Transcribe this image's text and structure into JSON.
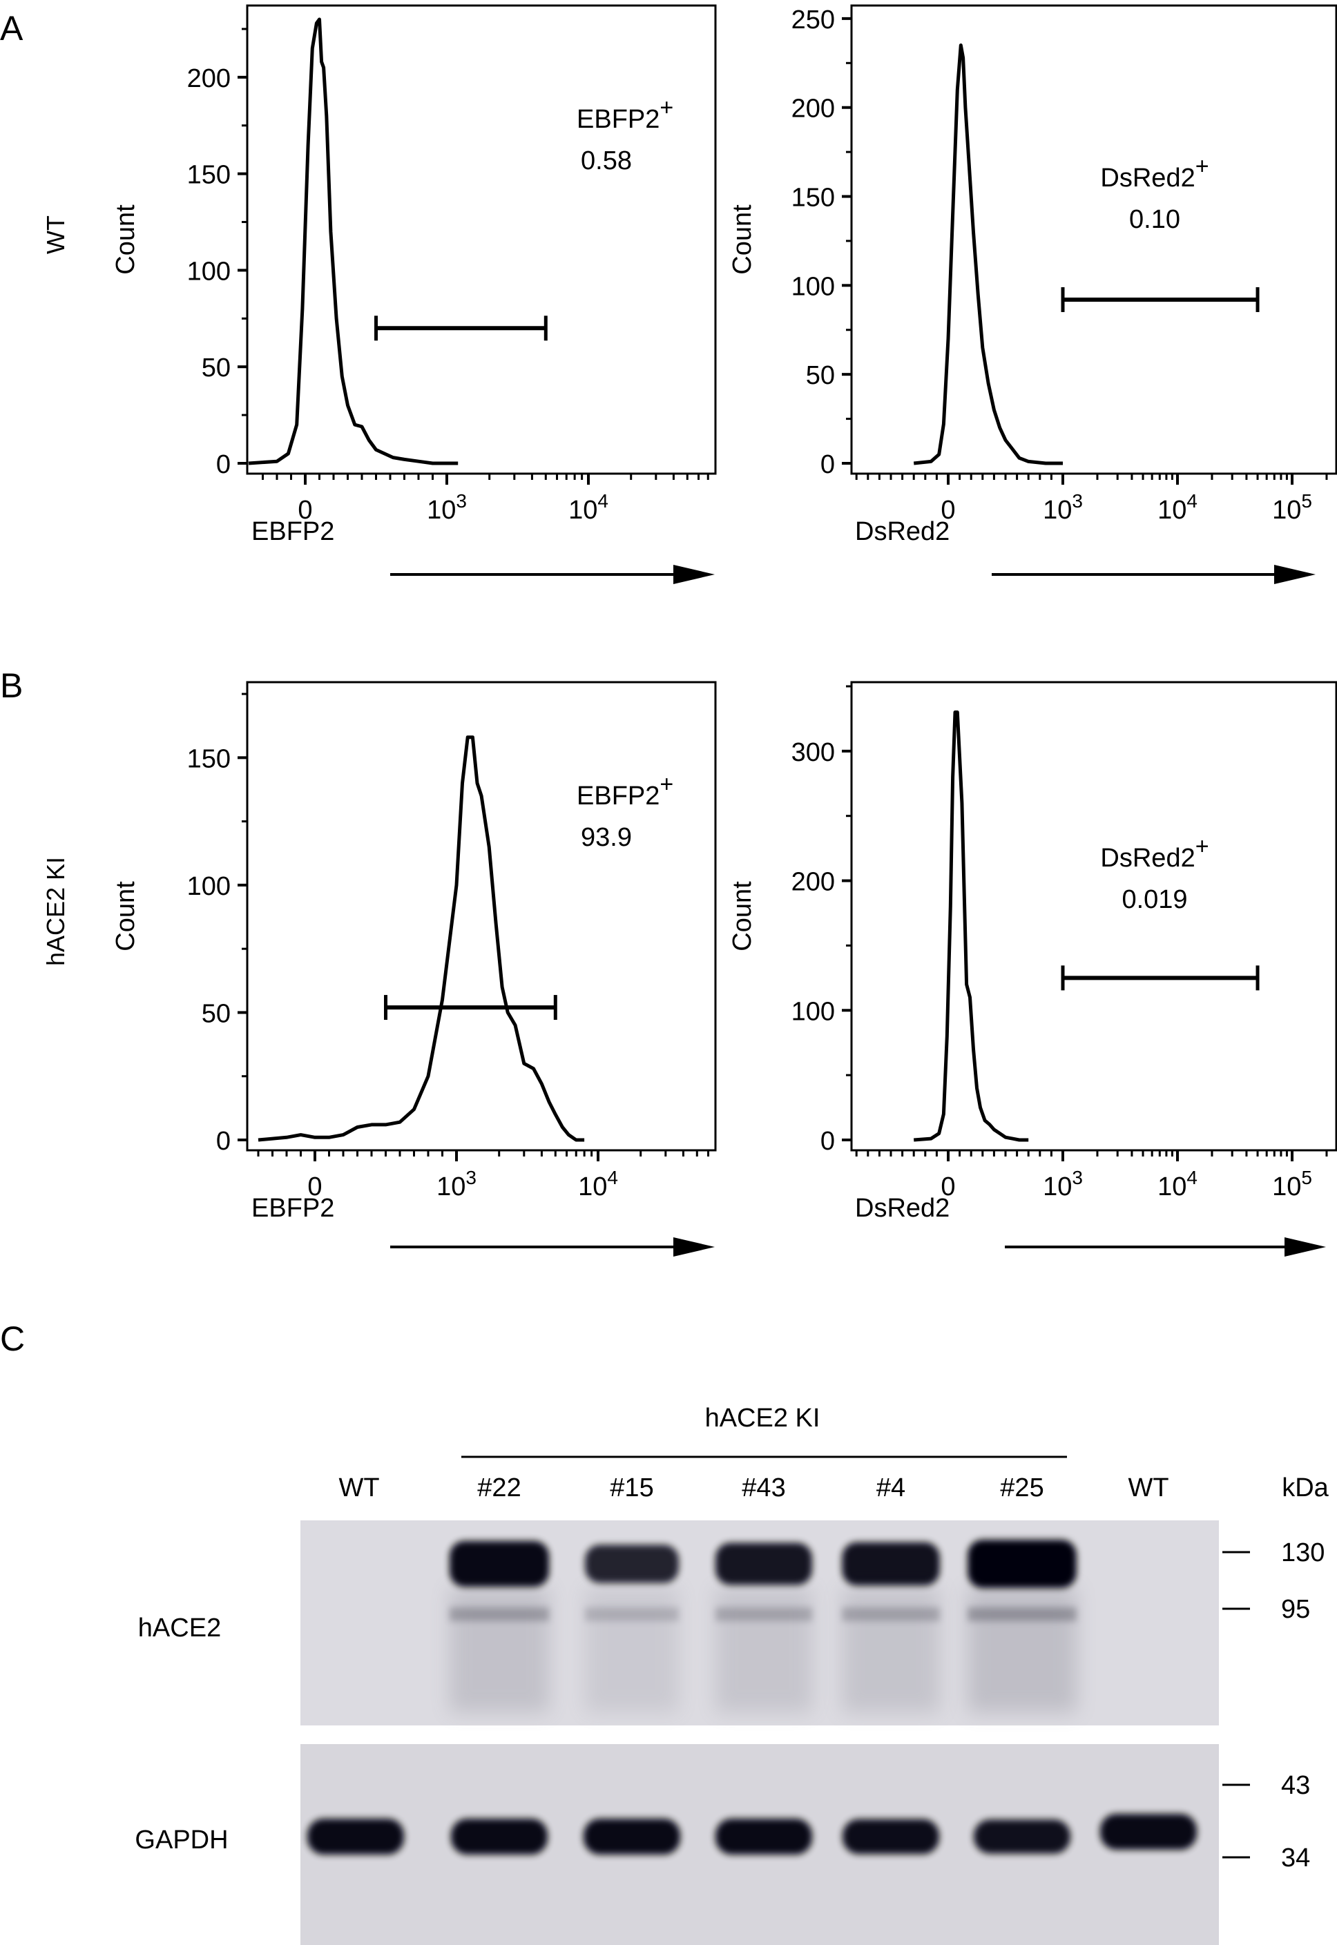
{
  "panels": {
    "A": {
      "letter": "A",
      "row_label": "WT"
    },
    "B": {
      "letter": "B",
      "row_label": "hACE2 KI"
    },
    "C": {
      "letter": "C"
    }
  },
  "chart_data": [
    {
      "id": "A_EBFP2",
      "type": "line",
      "xlabel": "EBFP2",
      "ylabel": "Count",
      "xaxis": {
        "scale": "biexponential",
        "tick_labels": [
          "0",
          "10^3",
          "10^4"
        ]
      },
      "ylim": [
        0,
        235
      ],
      "yticks": [
        0,
        50,
        100,
        150,
        200
      ],
      "gate": {
        "marker": "EBFP2",
        "sign": "+",
        "value": "0.58",
        "range": [
          500,
          5000
        ],
        "y": 70,
        "label_align": "left"
      },
      "series": [
        {
          "x": [
            -400,
            -200,
            -120,
            -60,
            -20,
            20,
            50,
            80,
            100,
            115,
            130,
            150,
            180,
            220,
            260,
            300,
            350,
            400,
            450,
            500,
            560,
            620,
            700,
            800,
            900,
            1000,
            1200
          ],
          "values": [
            0,
            1,
            5,
            20,
            80,
            165,
            215,
            228,
            230,
            208,
            205,
            180,
            120,
            75,
            45,
            30,
            20,
            19,
            12,
            7,
            5,
            3,
            2,
            1,
            0,
            0,
            0
          ]
        }
      ]
    },
    {
      "id": "A_DsRed2",
      "type": "line",
      "xlabel": "DsRed2",
      "ylabel": "Count",
      "xaxis": {
        "scale": "biexponential",
        "tick_labels": [
          "0",
          "10^3",
          "10^4",
          "10^5"
        ]
      },
      "ylim": [
        0,
        255
      ],
      "yticks": [
        0,
        50,
        100,
        150,
        200,
        250
      ],
      "gate": {
        "marker": "DsRed2",
        "sign": "+",
        "value": "0.10",
        "range": [
          1000,
          50000
        ],
        "y": 92,
        "label_align": "center"
      },
      "series": [
        {
          "x": [
            -300,
            -150,
            -80,
            -40,
            0,
            40,
            80,
            110,
            130,
            150,
            180,
            220,
            260,
            300,
            350,
            400,
            450,
            500,
            560,
            620,
            700,
            850,
            1000
          ],
          "values": [
            0,
            1,
            5,
            22,
            70,
            140,
            210,
            235,
            228,
            200,
            170,
            130,
            95,
            65,
            45,
            30,
            20,
            13,
            8,
            3,
            1,
            0,
            0
          ]
        }
      ]
    },
    {
      "id": "B_EBFP2",
      "type": "line",
      "xlabel": "EBFP2",
      "ylabel": "Count",
      "xaxis": {
        "scale": "biexponential",
        "tick_labels": [
          "0",
          "10^3",
          "10^4"
        ]
      },
      "ylim": [
        0,
        178
      ],
      "yticks": [
        0,
        50,
        100,
        150
      ],
      "gate": {
        "marker": "EBFP2",
        "sign": "+",
        "value": "93.9",
        "range": [
          500,
          5000
        ],
        "y": 52,
        "label_align": "left"
      },
      "series": [
        {
          "x": [
            -400,
            -200,
            -100,
            0,
            100,
            200,
            300,
            400,
            500,
            600,
            700,
            800,
            900,
            1000,
            1100,
            1200,
            1300,
            1400,
            1500,
            1700,
            1900,
            2100,
            2300,
            2600,
            3000,
            3500,
            4000,
            4500,
            5000,
            5600,
            6200,
            7000,
            8000
          ],
          "values": [
            0,
            1,
            2,
            1,
            1,
            2,
            5,
            6,
            6,
            7,
            12,
            25,
            55,
            100,
            140,
            158,
            158,
            140,
            135,
            115,
            85,
            60,
            50,
            45,
            30,
            28,
            22,
            15,
            10,
            5,
            2,
            0,
            0
          ]
        }
      ]
    },
    {
      "id": "B_DsRed2",
      "type": "line",
      "xlabel": "DsRed2",
      "ylabel": "Count",
      "xaxis": {
        "scale": "biexponential",
        "tick_labels": [
          "0",
          "10^3",
          "10^4",
          "10^5"
        ]
      },
      "ylim": [
        0,
        350
      ],
      "yticks": [
        0,
        100,
        200,
        300
      ],
      "gate": {
        "marker": "DsRed2",
        "sign": "+",
        "value": "0.019",
        "range": [
          1000,
          50000
        ],
        "y": 125,
        "label_align": "center"
      },
      "series": [
        {
          "x": [
            -300,
            -150,
            -80,
            -40,
            -10,
            20,
            40,
            60,
            80,
            100,
            120,
            140,
            160,
            190,
            220,
            250,
            280,
            320,
            360,
            400,
            450,
            500,
            560,
            620,
            700
          ],
          "values": [
            0,
            1,
            5,
            20,
            80,
            180,
            280,
            330,
            330,
            295,
            260,
            190,
            120,
            110,
            70,
            40,
            25,
            15,
            12,
            8,
            5,
            2,
            1,
            0,
            0
          ]
        }
      ]
    }
  ],
  "blot": {
    "group_label": "hACE2 KI",
    "lanes": [
      "WT",
      "#22",
      "#15",
      "#43",
      "#4",
      "#25",
      "WT"
    ],
    "kda_label": "kDa",
    "rows": [
      {
        "label": "hACE2",
        "markers": [
          "130",
          "95"
        ],
        "band_intensity": [
          0,
          0.9,
          0.6,
          0.75,
          0.8,
          1.0,
          0
        ]
      },
      {
        "label": "GAPDH",
        "markers": [
          "43",
          "34"
        ],
        "band_intensity": [
          0.85,
          0.85,
          0.85,
          0.85,
          0.8,
          0.75,
          0.85
        ]
      }
    ]
  }
}
